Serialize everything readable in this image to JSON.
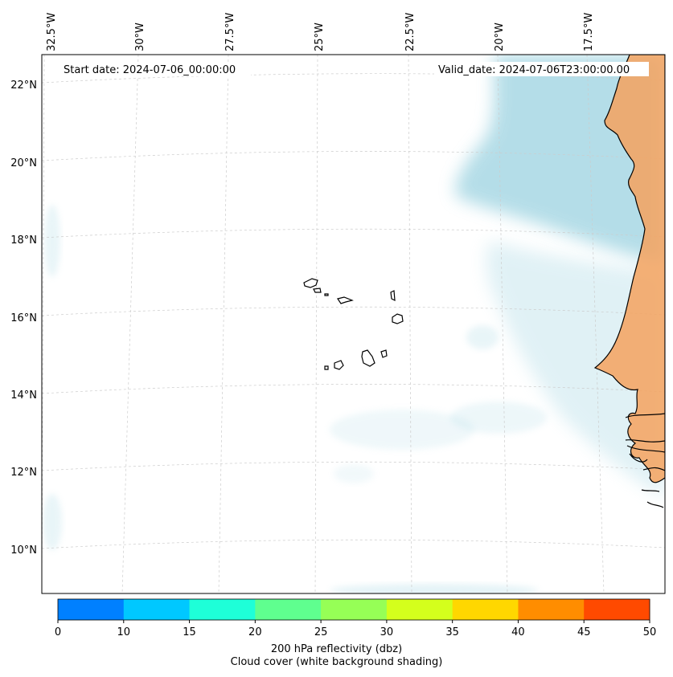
{
  "header": {
    "start_date": "Start date: 2024-07-06_00:00:00",
    "valid_date": "Valid_date: 2024-07-06T23:00:00.00"
  },
  "map": {
    "longitude_labels": [
      "32.5°W",
      "30°W",
      "27.5°W",
      "25°W",
      "22.5°W",
      "20°W",
      "17.5°W"
    ],
    "latitude_labels": [
      "22°N",
      "20°N",
      "18°N",
      "16°N",
      "14°N",
      "12°N",
      "10°N"
    ],
    "colors": {
      "cloud": "#a8d8e4",
      "land_reflectivity": "#f5a25e",
      "coastline": "#000000",
      "gridline": "#cccccc"
    }
  },
  "colorbar": {
    "ticks": [
      "0",
      "10",
      "15",
      "20",
      "25",
      "30",
      "35",
      "40",
      "45",
      "50"
    ],
    "colors": [
      "#0080ff",
      "#00c8ff",
      "#1effd8",
      "#5fff8f",
      "#96ff56",
      "#d4ff1c",
      "#ffd700",
      "#ff8d00",
      "#ff4a00"
    ]
  },
  "caption": {
    "line1": "200 hPa reflectivity (dbz)",
    "line2": "Cloud cover (white background shading)"
  }
}
